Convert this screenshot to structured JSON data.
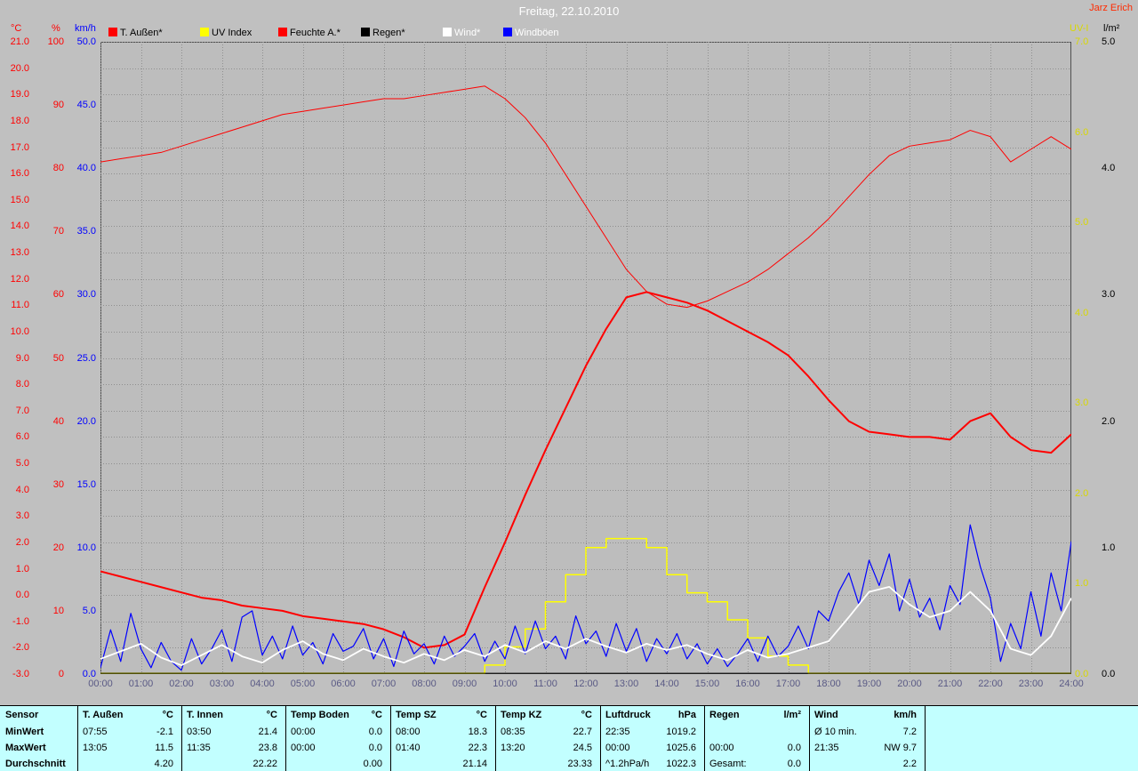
{
  "header": {
    "title": "Freitag, 22.10.2010",
    "owner": "Jarz Erich"
  },
  "colors": {
    "red": "#ff0000",
    "yellow": "#ffff00",
    "yellow_text": "#d8d800",
    "blue": "#0000ff",
    "white": "#ffffff",
    "black": "#000000",
    "grid": "#8f8f8f",
    "page_bg": "#c0c0c0",
    "plot_bg": "#bdbdbd",
    "table_bg": "#c2ffff",
    "xtick_text": "#5a5a85",
    "title_text": "#ffffff"
  },
  "legend": [
    {
      "label": "T. Außen*",
      "color": "#ff0000",
      "text_color": "#000000"
    },
    {
      "label": "UV Index",
      "color": "#ffff00",
      "text_color": "#000000"
    },
    {
      "label": "Feuchte A.*",
      "color": "#ff0000",
      "text_color": "#000000"
    },
    {
      "label": "Regen*",
      "color": "#000000",
      "text_color": "#000000"
    },
    {
      "label": "Wind*",
      "color": "#ffffff",
      "text_color": "#ffffff"
    },
    {
      "label": "Windböen",
      "color": "#0000ff",
      "text_color": "#ffffff"
    }
  ],
  "axes": {
    "left_units": [
      "°C",
      "%",
      "km/h"
    ],
    "right_units": [
      "UV-I",
      "l/m²"
    ],
    "degC_ticks": [
      "21.0",
      "20.0",
      "19.0",
      "18.0",
      "17.0",
      "16.0",
      "15.0",
      "14.0",
      "13.0",
      "12.0",
      "11.0",
      "10.0",
      "9.0",
      "8.0",
      "7.0",
      "6.0",
      "5.0",
      "4.0",
      "3.0",
      "2.0",
      "1.0",
      "0.0",
      "-1.0",
      "-2.0",
      "-3.0"
    ],
    "pct_ticks": [
      "100",
      "90",
      "80",
      "70",
      "60",
      "50",
      "40",
      "30",
      "20",
      "10",
      "0"
    ],
    "kmh_ticks": [
      "50.0",
      "45.0",
      "40.0",
      "35.0",
      "30.0",
      "25.0",
      "20.0",
      "15.0",
      "10.0",
      "5.0",
      "0.0"
    ],
    "uv_ticks": [
      "7.0",
      "6.0",
      "5.0",
      "4.0",
      "3.0",
      "2.0",
      "1.0",
      "0.0"
    ],
    "rain_ticks": [
      "5.0",
      "4.0",
      "3.0",
      "2.0",
      "1.0",
      "0.0"
    ],
    "x_ticks": [
      "00:00",
      "01:00",
      "02:00",
      "03:00",
      "04:00",
      "05:00",
      "06:00",
      "07:00",
      "08:00",
      "09:00",
      "10:00",
      "11:00",
      "12:00",
      "13:00",
      "14:00",
      "15:00",
      "16:00",
      "17:00",
      "18:00",
      "19:00",
      "20:00",
      "21:00",
      "22:00",
      "23:00",
      "24:00"
    ]
  },
  "chart_data": {
    "type": "line",
    "title": "Freitag, 22.10.2010",
    "x_unit": "hours",
    "x_range": [
      0,
      24
    ],
    "axis_ranges": {
      "degC": [
        -3,
        21
      ],
      "pct": [
        0,
        100
      ],
      "kmh": [
        0,
        50
      ],
      "uv": [
        0,
        7
      ],
      "rain": [
        0,
        5
      ]
    },
    "grid": "dotted, 1 h vertical / 1 °C horizontal",
    "series": [
      {
        "name": "Feuchte A.",
        "axis": "pct",
        "color": "#ff0000",
        "width": 1,
        "interval_h": 0.5,
        "values": [
          81,
          81.5,
          82,
          82.5,
          83.5,
          84.5,
          85.5,
          86.5,
          87.5,
          88.5,
          89,
          89.5,
          90,
          90.5,
          91,
          91,
          91.5,
          92,
          92.5,
          93,
          91,
          88,
          84,
          79,
          74,
          69,
          64,
          60.5,
          58.5,
          58,
          59,
          60.5,
          62,
          64,
          66.5,
          69,
          72,
          75.5,
          79,
          82,
          83.5,
          84,
          84.5,
          86,
          85,
          81,
          83,
          85,
          83
        ]
      },
      {
        "name": "T. Außen",
        "axis": "degC",
        "color": "#ff0000",
        "width": 2,
        "interval_h": 0.5,
        "values": [
          0.9,
          0.7,
          0.5,
          0.3,
          0.1,
          -0.1,
          -0.2,
          -0.4,
          -0.5,
          -0.6,
          -0.8,
          -0.9,
          -1.0,
          -1.1,
          -1.3,
          -1.6,
          -2.0,
          -1.9,
          -1.5,
          0.3,
          2.0,
          3.8,
          5.5,
          7.1,
          8.7,
          10.1,
          11.3,
          11.5,
          11.3,
          11.1,
          10.8,
          10.4,
          10.0,
          9.6,
          9.1,
          8.3,
          7.4,
          6.6,
          6.2,
          6.1,
          6.0,
          6.0,
          5.9,
          6.6,
          6.9,
          6.0,
          5.5,
          5.4,
          6.1
        ]
      },
      {
        "name": "UV Index",
        "axis": "uv",
        "color": "#ffff00",
        "width": 1.5,
        "interval_h": 0.5,
        "step": true,
        "values": [
          0,
          0,
          0,
          0,
          0,
          0,
          0,
          0,
          0,
          0,
          0,
          0,
          0,
          0,
          0,
          0,
          0,
          0,
          0,
          0.1,
          0.3,
          0.5,
          0.8,
          1.1,
          1.4,
          1.5,
          1.5,
          1.4,
          1.1,
          0.9,
          0.8,
          0.6,
          0.4,
          0.2,
          0.1,
          0,
          0,
          0,
          0,
          0,
          0,
          0,
          0,
          0,
          0,
          0,
          0,
          0,
          0
        ]
      },
      {
        "name": "Regen",
        "axis": "rain",
        "color": "#000000",
        "width": 1,
        "interval_h": 12,
        "values": [
          0,
          0,
          0
        ]
      },
      {
        "name": "Windböen",
        "axis": "kmh",
        "color": "#0000ff",
        "width": 1.2,
        "interval_h": 0.25,
        "values": [
          0.5,
          3.5,
          1.0,
          4.8,
          2.0,
          0.5,
          2.5,
          1.0,
          0.3,
          2.8,
          0.8,
          2.0,
          3.5,
          1.0,
          4.5,
          5.0,
          1.5,
          3.0,
          1.2,
          3.8,
          1.5,
          2.5,
          0.8,
          3.2,
          1.8,
          2.2,
          3.6,
          1.2,
          2.8,
          0.6,
          3.4,
          1.6,
          2.4,
          0.8,
          3.0,
          1.4,
          2.2,
          3.2,
          1.0,
          2.6,
          1.2,
          3.8,
          1.6,
          4.2,
          2.0,
          3.0,
          1.2,
          4.6,
          2.4,
          3.4,
          1.4,
          4.0,
          1.8,
          3.6,
          1.0,
          2.8,
          1.6,
          3.2,
          1.2,
          2.4,
          0.8,
          2.0,
          0.6,
          1.6,
          2.8,
          1.0,
          3.0,
          1.4,
          2.2,
          3.8,
          2.0,
          5.0,
          4.2,
          6.5,
          8.0,
          5.5,
          9.0,
          7.0,
          9.5,
          5.0,
          7.5,
          4.5,
          6.0,
          3.5,
          7.0,
          5.5,
          11.8,
          8.5,
          6.0,
          1.0,
          4.0,
          2.0,
          6.5,
          3.0,
          8.0,
          5.0,
          10.5
        ]
      },
      {
        "name": "Wind",
        "axis": "kmh",
        "color": "#ffffff",
        "width": 1.8,
        "interval_h": 0.5,
        "values": [
          1.2,
          1.8,
          2.4,
          1.3,
          0.7,
          1.5,
          2.3,
          1.4,
          0.9,
          1.9,
          2.6,
          1.6,
          1.1,
          2.0,
          1.4,
          0.9,
          1.6,
          1.1,
          1.9,
          1.4,
          2.3,
          1.7,
          2.6,
          2.0,
          2.8,
          2.2,
          1.7,
          2.4,
          1.9,
          2.3,
          1.6,
          1.1,
          1.9,
          1.3,
          1.6,
          2.1,
          2.6,
          4.5,
          6.5,
          6.9,
          5.5,
          4.5,
          5.0,
          6.5,
          5.0,
          2.0,
          1.5,
          3.0,
          6.0
        ]
      }
    ]
  },
  "table": {
    "row_labels": [
      "Sensor",
      "MinWert",
      "MaxWert",
      "Durchschnitt"
    ],
    "columns": [
      {
        "name": "T. Außen",
        "unit": "°C",
        "min": [
          "07:55",
          "-2.1"
        ],
        "max": [
          "13:05",
          "11.5"
        ],
        "avg": [
          "",
          "4.20"
        ]
      },
      {
        "name": "T. Innen",
        "unit": "°C",
        "min": [
          "03:50",
          "21.4"
        ],
        "max": [
          "11:35",
          "23.8"
        ],
        "avg": [
          "",
          "22.22"
        ]
      },
      {
        "name": "Temp Boden",
        "unit": "°C",
        "min": [
          "00:00",
          "0.0"
        ],
        "max": [
          "00:00",
          "0.0"
        ],
        "avg": [
          "",
          "0.00"
        ]
      },
      {
        "name": "Temp SZ",
        "unit": "°C",
        "min": [
          "08:00",
          "18.3"
        ],
        "max": [
          "01:40",
          "22.3"
        ],
        "avg": [
          "",
          "21.14"
        ]
      },
      {
        "name": "Temp KZ",
        "unit": "°C",
        "min": [
          "08:35",
          "22.7"
        ],
        "max": [
          "13:20",
          "24.5"
        ],
        "avg": [
          "",
          "23.33"
        ]
      },
      {
        "name": "Luftdruck",
        "unit": "hPa",
        "min": [
          "22:35",
          "1019.2"
        ],
        "max": [
          "00:00",
          "1025.6"
        ],
        "avg": [
          "^1.2hPa/h",
          "1022.3"
        ]
      },
      {
        "name": "Regen",
        "unit": "l/m²",
        "min": [
          "",
          ""
        ],
        "max": [
          "00:00",
          "0.0"
        ],
        "avg": [
          "Gesamt:",
          "0.0"
        ]
      },
      {
        "name": "Wind",
        "unit": "km/h",
        "min": [
          "Ø 10 min.",
          "7.2"
        ],
        "max": [
          "21:35",
          "NW 9.7"
        ],
        "avg": [
          "",
          "2.2"
        ]
      }
    ]
  }
}
